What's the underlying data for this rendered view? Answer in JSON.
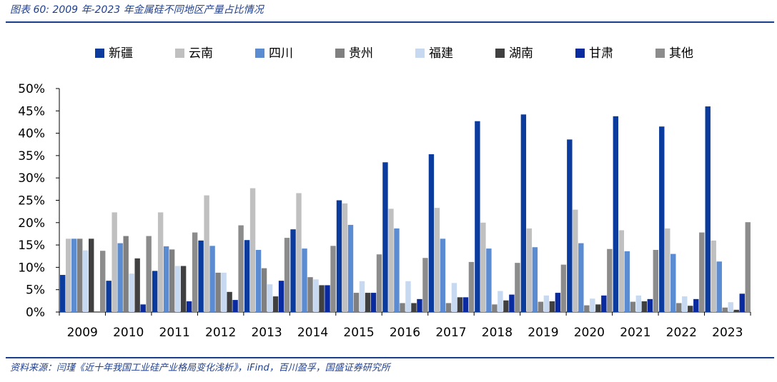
{
  "figure": {
    "title": "图表 60:  2009 年-2023 年金属硅不同地区产量占比情况",
    "source": "资料来源：闫瑾《近十年我国工业硅产业格局变化浅析》，iFind，百川盈孚，国盛证券研究所"
  },
  "chart_data": {
    "type": "bar",
    "title": "",
    "xlabel": "",
    "ylabel": "",
    "ylim": [
      0,
      50
    ],
    "y_ticks": [
      "0%",
      "5%",
      "10%",
      "15%",
      "20%",
      "25%",
      "30%",
      "35%",
      "40%",
      "45%",
      "50%"
    ],
    "legend_position": "top",
    "grid": false,
    "categories": [
      "2009",
      "2010",
      "2011",
      "2012",
      "2013",
      "2014",
      "2015",
      "2016",
      "2017",
      "2018",
      "2019",
      "2020",
      "2021",
      "2022",
      "2023"
    ],
    "series": [
      {
        "name": "新疆",
        "color": "#0b3b9c",
        "values": [
          8.3,
          7.0,
          9.2,
          16.0,
          16.1,
          18.5,
          25.0,
          33.5,
          35.3,
          42.7,
          44.2,
          38.6,
          43.8,
          41.5,
          46.0
        ]
      },
      {
        "name": "云南",
        "color": "#c0c0c0",
        "values": [
          16.4,
          22.3,
          22.3,
          26.1,
          27.7,
          26.6,
          24.3,
          23.1,
          23.3,
          20.0,
          18.7,
          22.9,
          18.3,
          18.7,
          16.0
        ]
      },
      {
        "name": "四川",
        "color": "#5b8bd0",
        "values": [
          16.4,
          15.4,
          14.7,
          14.8,
          13.9,
          14.2,
          19.5,
          18.7,
          16.4,
          14.2,
          14.5,
          15.4,
          13.6,
          13.0,
          11.3
        ]
      },
      {
        "name": "贵州",
        "color": "#808080",
        "values": [
          16.4,
          17.0,
          14.0,
          8.8,
          9.8,
          7.8,
          4.3,
          2.0,
          2.0,
          1.7,
          2.3,
          1.5,
          2.3,
          2.0,
          1.0
        ]
      },
      {
        "name": "福建",
        "color": "#c6d9f1",
        "values": [
          13.8,
          8.6,
          10.3,
          8.8,
          6.2,
          7.3,
          6.9,
          6.9,
          6.5,
          4.7,
          3.7,
          3.0,
          3.7,
          3.5,
          2.2
        ]
      },
      {
        "name": "湖南",
        "color": "#404040",
        "values": [
          16.4,
          12.0,
          10.3,
          4.5,
          3.5,
          6.0,
          4.3,
          2.0,
          3.3,
          2.6,
          2.4,
          1.7,
          2.4,
          1.4,
          0.5
        ]
      },
      {
        "name": "甘肃",
        "color": "#0a2a9f",
        "values": [
          0.0,
          1.7,
          2.4,
          2.7,
          7.0,
          6.0,
          4.3,
          2.9,
          3.3,
          3.9,
          4.3,
          3.7,
          2.9,
          2.9,
          4.1
        ]
      },
      {
        "name": "其他",
        "color": "#8c8c8c",
        "values": [
          13.7,
          17.0,
          17.8,
          19.4,
          16.6,
          14.8,
          12.9,
          12.1,
          11.2,
          11.0,
          10.6,
          14.1,
          13.9,
          17.8,
          20.1
        ]
      }
    ]
  }
}
